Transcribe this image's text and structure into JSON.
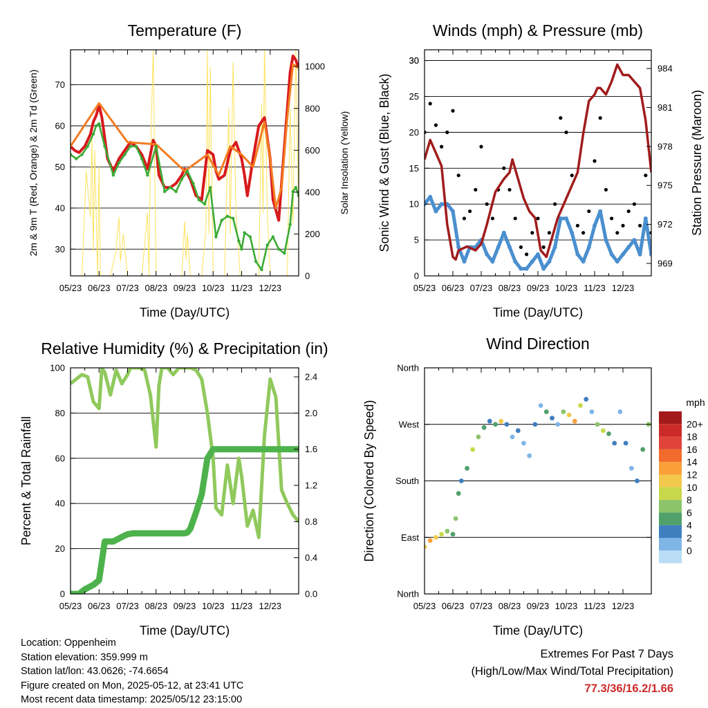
{
  "chart_data": [
    {
      "type": "line",
      "title": "Temperature (F)",
      "xlabel": "Time (Day/UTC)",
      "ylabel": "2m & 9m T (Red, Orange) & 2m Td (Green)",
      "y2label": "Solar Insolation (Yellow)",
      "x_ticks": [
        "05/23",
        "06/23",
        "07/23",
        "08/23",
        "09/23",
        "10/23",
        "11/23",
        "12/23"
      ],
      "ylim": [
        23.5,
        78.5
      ],
      "y_ticks": [
        30,
        40,
        50,
        60,
        70
      ],
      "y2lim": [
        0,
        1080
      ],
      "y2_ticks": [
        0,
        200,
        400,
        600,
        800,
        1000
      ],
      "grid": true,
      "series": [
        {
          "name": "2m T",
          "color": "#d7191c",
          "x": [
            0,
            0.15,
            0.3,
            0.5,
            0.7,
            0.8,
            0.9,
            1.0,
            1.1,
            1.3,
            1.5,
            1.7,
            1.9,
            2.1,
            2.3,
            2.5,
            2.7,
            2.9,
            3.0,
            3.1,
            3.3,
            3.5,
            3.7,
            3.9,
            4.0,
            4.2,
            4.4,
            4.6,
            4.8,
            5.0,
            5.1,
            5.2,
            5.4,
            5.6,
            5.8,
            6.0,
            6.1,
            6.2,
            6.4,
            6.6,
            6.8,
            7.0,
            7.1,
            7.3,
            7.5,
            7.7,
            7.8,
            7.9,
            8.0
          ],
          "y": [
            55,
            54,
            53.5,
            55,
            58,
            61,
            62.5,
            65,
            62,
            52,
            49,
            52,
            54,
            56,
            55,
            53,
            49.5,
            56.5,
            55,
            48,
            45,
            45,
            46,
            48,
            49.5,
            47,
            43,
            42,
            54,
            53,
            49,
            47,
            48,
            54,
            56,
            52,
            48,
            43,
            52,
            60,
            62,
            52,
            42,
            37,
            55,
            73,
            77,
            76,
            74
          ]
        },
        {
          "name": "9m T",
          "color": "#f47b20",
          "x": [
            0,
            1.0,
            2.0,
            3.0,
            4.0,
            4.8,
            5.2,
            5.6,
            6.0,
            6.4,
            6.8,
            7.0,
            7.2,
            7.4,
            7.6,
            7.8,
            8.0
          ],
          "y": [
            55,
            65.5,
            56,
            55.5,
            49,
            53,
            48,
            55,
            53,
            50,
            61,
            52,
            40,
            45,
            62,
            75,
            74
          ]
        },
        {
          "name": "2m Td",
          "color": "#3aaa35",
          "x": [
            0,
            0.2,
            0.4,
            0.6,
            0.8,
            0.9,
            1.0,
            1.2,
            1.5,
            1.7,
            1.9,
            2.1,
            2.3,
            2.5,
            2.7,
            3.0,
            3.3,
            3.5,
            3.7,
            3.9,
            4.1,
            4.3,
            4.5,
            4.7,
            4.9,
            5.1,
            5.3,
            5.5,
            5.7,
            5.9,
            6.0,
            6.1,
            6.3,
            6.5,
            6.7,
            6.9,
            7.1,
            7.3,
            7.5,
            7.7,
            7.8,
            7.9,
            8.0
          ],
          "y": [
            53,
            52,
            53,
            55,
            58,
            60,
            60.5,
            55,
            48,
            51,
            53,
            55,
            55,
            52,
            48,
            55,
            44,
            45,
            44,
            47,
            49,
            46,
            42,
            41,
            45,
            33,
            37,
            38,
            37.5,
            32,
            30,
            34,
            33,
            27,
            25,
            31,
            33,
            30,
            29,
            36,
            44,
            45,
            43
          ]
        },
        {
          "name": "Solar Insolation",
          "color": "#fde25a",
          "axis": "y2",
          "x": [
            0,
            0.4,
            0.55,
            0.7,
            0.75,
            0.8,
            0.85,
            0.95,
            1.0,
            1.05,
            1.2,
            1.4,
            1.6,
            1.7,
            1.75,
            1.85,
            2.0,
            2.3,
            2.5,
            2.7,
            2.75,
            2.8,
            2.9,
            3.0,
            3.1,
            3.5,
            3.9,
            4.0,
            4.05,
            4.1,
            4.2,
            4.4,
            4.6,
            4.75,
            4.8,
            4.85,
            4.9,
            5.0,
            5.1,
            5.2,
            5.4,
            5.55,
            5.6,
            5.7,
            5.8,
            5.95,
            6.1,
            6.3,
            6.6,
            6.7,
            6.75,
            6.8,
            6.9,
            7.0,
            7.3,
            7.6,
            7.7,
            7.8,
            7.9,
            8.0
          ],
          "y": [
            0,
            0,
            500,
            280,
            660,
            120,
            600,
            0,
            520,
            0,
            0,
            0,
            120,
            280,
            70,
            200,
            0,
            0,
            0,
            300,
            0,
            560,
            1080,
            0,
            0,
            0,
            0,
            260,
            80,
            200,
            0,
            0,
            0,
            230,
            1080,
            200,
            1000,
            0,
            0,
            0,
            0,
            800,
            200,
            1020,
            300,
            0,
            0,
            0,
            0,
            820,
            300,
            1100,
            300,
            0,
            0,
            0,
            800,
            250,
            1080,
            300
          ]
        }
      ]
    },
    {
      "type": "scatter",
      "title": "Winds (mph) & Pressure (mb)",
      "xlabel": "Time (Day/UTC)",
      "ylabel": "Sonic Wind & Gust (Blue, Black)",
      "y2label": "Station Pressure (Maroon)",
      "x_ticks": [
        "05/23",
        "06/23",
        "07/23",
        "08/23",
        "09/23",
        "10/23",
        "11/23",
        "12/23"
      ],
      "ylim": [
        0,
        31.5
      ],
      "y_ticks": [
        0,
        5,
        10,
        15,
        20,
        25,
        30
      ],
      "y2lim": [
        968.04,
        985.44
      ],
      "y2_ticks": [
        969,
        972,
        975,
        978,
        981,
        984
      ],
      "grid": true,
      "series": [
        {
          "name": "Gust",
          "color": "#000000",
          "x": [
            0,
            0.2,
            0.4,
            0.6,
            0.8,
            1.0,
            1.2,
            1.4,
            1.6,
            1.8,
            2.0,
            2.2,
            2.4,
            2.6,
            2.8,
            3.0,
            3.2,
            3.4,
            3.6,
            3.8,
            4.0,
            4.2,
            4.4,
            4.6,
            4.8,
            5.0,
            5.2,
            5.4,
            5.6,
            5.8,
            6.0,
            6.2,
            6.4,
            6.6,
            6.8,
            7.0,
            7.2,
            7.4,
            7.6,
            7.8,
            8.0
          ],
          "y": [
            20,
            24,
            21,
            18,
            20,
            23,
            14,
            8,
            9,
            12,
            18,
            10,
            8,
            12,
            15,
            12,
            8,
            4,
            3,
            6,
            8,
            4,
            6,
            10,
            22,
            20,
            14,
            7,
            6,
            9,
            16,
            22,
            12,
            8,
            6,
            7,
            9,
            10,
            7,
            14,
            6
          ]
        },
        {
          "name": "Wind",
          "color": "#4a8fcf",
          "x": [
            0,
            0.2,
            0.4,
            0.6,
            0.8,
            1.0,
            1.2,
            1.4,
            1.6,
            1.8,
            2.0,
            2.2,
            2.4,
            2.6,
            2.8,
            3.0,
            3.2,
            3.4,
            3.6,
            3.8,
            4.0,
            4.2,
            4.4,
            4.6,
            4.8,
            5.0,
            5.2,
            5.4,
            5.6,
            5.8,
            6.0,
            6.2,
            6.4,
            6.6,
            6.8,
            7.0,
            7.2,
            7.4,
            7.6,
            7.8,
            8.0
          ],
          "y": [
            10,
            11,
            9,
            10,
            10,
            9,
            4,
            2,
            4,
            4,
            5,
            3,
            2,
            4,
            6,
            4,
            2,
            1,
            1,
            2,
            3,
            1,
            2,
            4,
            8,
            8,
            6,
            3,
            2,
            4,
            7,
            9,
            5,
            3,
            2,
            3,
            4,
            5,
            3,
            8,
            3
          ]
        },
        {
          "name": "Station Pressure",
          "color": "#a01c1c",
          "axis": "y2",
          "x": [
            0,
            0.2,
            0.4,
            0.6,
            0.8,
            1.0,
            1.1,
            1.2,
            1.5,
            1.8,
            2.0,
            2.2,
            2.5,
            2.8,
            3.0,
            3.1,
            3.3,
            3.5,
            3.7,
            3.9,
            4.1,
            4.3,
            4.5,
            4.7,
            4.9,
            5.0,
            5.2,
            5.4,
            5.6,
            5.8,
            6.0,
            6.1,
            6.2,
            6.4,
            6.6,
            6.8,
            7.0,
            7.2,
            7.4,
            7.6,
            7.8,
            8.0
          ],
          "y": [
            977,
            978.5,
            977.5,
            976.5,
            972,
            969.5,
            969.3,
            970,
            970.3,
            970,
            970.5,
            972,
            974.5,
            975.5,
            976,
            977,
            975.5,
            974,
            973,
            972.5,
            970,
            969.5,
            971,
            972.5,
            973.5,
            974,
            975,
            976,
            979,
            981.5,
            982,
            982.5,
            982.5,
            982,
            983,
            984.3,
            983.5,
            983.5,
            983,
            982.5,
            980,
            976
          ]
        }
      ]
    },
    {
      "type": "line",
      "title": "Relative Humidity (%) & Precipitation (in)",
      "xlabel": "Time (Day/UTC)",
      "ylabel": "Percent & Total Rainfall",
      "x_ticks": [
        "05/23",
        "06/23",
        "07/23",
        "08/23",
        "09/23",
        "10/23",
        "11/23",
        "12/23"
      ],
      "ylim": [
        0,
        100
      ],
      "y_ticks": [
        0,
        20,
        40,
        60,
        80,
        100
      ],
      "y2lim": [
        0,
        2.5
      ],
      "y2_ticks": [
        "0.0",
        "0.4",
        "0.8",
        "1.2",
        "1.6",
        "2.0",
        "2.4"
      ],
      "grid": true,
      "series": [
        {
          "name": "Relative Humidity",
          "color": "#90c95c",
          "x": [
            0,
            0.2,
            0.4,
            0.6,
            0.8,
            1.0,
            1.1,
            1.2,
            1.4,
            1.6,
            1.8,
            2.0,
            2.1,
            2.2,
            2.4,
            2.6,
            2.8,
            3.0,
            3.1,
            3.2,
            3.4,
            3.6,
            3.8,
            4.0,
            4.2,
            4.4,
            4.6,
            4.8,
            5.0,
            5.1,
            5.3,
            5.5,
            5.7,
            5.9,
            6.0,
            6.2,
            6.4,
            6.6,
            6.8,
            7.0,
            7.2,
            7.4,
            7.6,
            7.8,
            8.0
          ],
          "y": [
            93,
            95,
            97,
            96,
            85,
            82,
            100,
            98,
            88,
            99,
            93,
            97,
            100,
            100,
            100,
            99,
            88,
            65,
            92,
            100,
            100,
            97,
            100,
            100,
            100,
            99,
            95,
            80,
            60,
            38,
            35,
            57,
            40,
            60,
            52,
            30,
            37,
            25,
            70,
            95,
            87,
            46,
            40,
            35,
            32
          ]
        },
        {
          "name": "Total Rainfall",
          "color": "#4db24b",
          "axis": "y2",
          "x": [
            0,
            0.3,
            0.5,
            0.8,
            1.0,
            1.2,
            1.3,
            1.5,
            1.8,
            2.0,
            2.2,
            2.5,
            3.0,
            3.5,
            4.0,
            4.1,
            4.2,
            4.4,
            4.6,
            4.8,
            5.0,
            5.5,
            6.0,
            6.5,
            7.0,
            7.5,
            8.0
          ],
          "y": [
            0,
            0,
            0.05,
            0.1,
            0.15,
            0.58,
            0.58,
            0.58,
            0.63,
            0.66,
            0.67,
            0.67,
            0.67,
            0.67,
            0.67,
            0.68,
            0.72,
            0.9,
            1.1,
            1.5,
            1.6,
            1.6,
            1.6,
            1.6,
            1.6,
            1.6,
            1.6
          ]
        }
      ]
    },
    {
      "type": "scatter",
      "title": "Wind Direction",
      "xlabel": "Time (Day/UTC)",
      "ylabel": "Direction (Colored By Speed)",
      "x_ticks": [
        "05/23",
        "06/23",
        "07/23",
        "08/23",
        "09/23",
        "10/23",
        "11/23",
        "12/23"
      ],
      "y_ticks": [
        "North",
        "East",
        "South",
        "West",
        "North"
      ],
      "ylim": [
        0,
        360
      ],
      "grid": true,
      "legend": {
        "title": "mph",
        "placement": "right",
        "labels": [
          "20+",
          "18",
          "16",
          "14",
          "12",
          "10",
          "8",
          "6",
          "4",
          "2",
          "0"
        ],
        "colors": [
          "#a41a1a",
          "#cc2a2a",
          "#e0433a",
          "#f26a2c",
          "#f9a03a",
          "#f2c94c",
          "#c8d84a",
          "#8cc46c",
          "#4fa06a",
          "#3f7fbf",
          "#7fb6e6",
          "#b9ddf5"
        ]
      },
      "series": [
        {
          "name": "Direction",
          "x": [
            0,
            0.2,
            0.4,
            0.6,
            0.8,
            1.0,
            1.1,
            1.2,
            1.3,
            1.5,
            1.7,
            1.9,
            2.1,
            2.3,
            2.5,
            2.7,
            2.9,
            3.1,
            3.3,
            3.5,
            3.7,
            3.9,
            4.1,
            4.3,
            4.5,
            4.7,
            4.9,
            5.1,
            5.3,
            5.5,
            5.7,
            5.9,
            6.1,
            6.3,
            6.5,
            6.7,
            6.9,
            7.1,
            7.3,
            7.5,
            7.7,
            7.9
          ],
          "y": [
            75,
            85,
            90,
            95,
            100,
            95,
            120,
            160,
            180,
            200,
            230,
            250,
            265,
            275,
            270,
            275,
            270,
            250,
            260,
            240,
            220,
            270,
            300,
            290,
            280,
            270,
            290,
            285,
            275,
            300,
            310,
            290,
            270,
            260,
            255,
            240,
            290,
            240,
            200,
            180,
            230,
            270
          ],
          "speed": [
            12,
            14,
            12,
            10,
            8,
            6,
            8,
            6,
            4,
            6,
            10,
            8,
            6,
            4,
            6,
            12,
            4,
            2,
            4,
            2,
            2,
            4,
            2,
            6,
            4,
            2,
            8,
            12,
            14,
            10,
            4,
            2,
            8,
            10,
            6,
            4,
            2,
            4,
            2,
            4,
            6,
            8
          ]
        }
      ]
    }
  ],
  "info": {
    "location": "Location: Oppenheim",
    "elevation": "Station elevation: 359.999 m",
    "latlon": "Station lat/lon: 43.0626; -74.6654",
    "created": "Figure created on Mon, 2025-05-12, at 23:41 UTC",
    "recent": "Most recent data timestamp: 2025/05/12 23:15:00"
  },
  "extremes": {
    "line1": "Extremes For Past 7 Days",
    "line2": "(High/Low/Max Wind/Total Precipitation)",
    "values": "77.3/36/16.2/1.66"
  }
}
